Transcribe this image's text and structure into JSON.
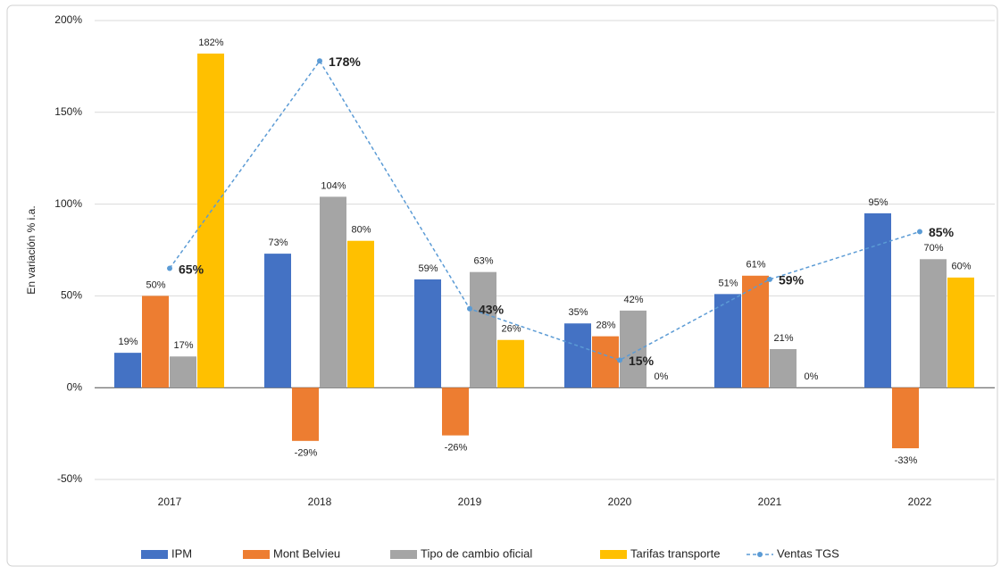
{
  "chart_data": {
    "type": "bar",
    "y_label": "En variación % i.a.",
    "categories": [
      "2017",
      "2018",
      "2019",
      "2020",
      "2021",
      "2022"
    ],
    "series": [
      {
        "name": "IPM",
        "color": "#4472c4",
        "values": [
          19,
          73,
          59,
          35,
          51,
          95
        ],
        "value_labels": [
          "19%",
          "73%",
          "59%",
          "35%",
          "51%",
          "95%"
        ]
      },
      {
        "name": "Mont Belvieu",
        "color": "#ed7d31",
        "values": [
          50,
          -29,
          -26,
          28,
          61,
          -33
        ],
        "value_labels": [
          "50%",
          "-29%",
          "-26%",
          "28%",
          "61%",
          "-33%"
        ]
      },
      {
        "name": "Tipo de cambio oficial",
        "color": "#a5a5a5",
        "values": [
          17,
          104,
          63,
          42,
          21,
          70
        ],
        "value_labels": [
          "17%",
          "104%",
          "63%",
          "42%",
          "21%",
          "70%"
        ]
      },
      {
        "name": "Tarifas transporte",
        "color": "#ffc000",
        "values": [
          182,
          80,
          26,
          0,
          0,
          60
        ],
        "value_labels": [
          "182%",
          "80%",
          "26%",
          "0%",
          "0%",
          "60%"
        ]
      },
      {
        "name": "Ventas TGS",
        "color": "#5b9bd5",
        "type": "line",
        "values": [
          65,
          178,
          43,
          15,
          59,
          85
        ],
        "value_labels": [
          "65%",
          "178%",
          "43%",
          "15%",
          "59%",
          "85%"
        ]
      }
    ],
    "ylim": [
      -50,
      200
    ],
    "yticks": [
      {
        "value": -50,
        "label": "-50%"
      },
      {
        "value": 0,
        "label": "0%"
      },
      {
        "value": 50,
        "label": "50%"
      },
      {
        "value": 100,
        "label": "100%"
      },
      {
        "value": 150,
        "label": "150%"
      },
      {
        "value": 200,
        "label": "200%"
      }
    ],
    "grid": true,
    "legend": "bottom"
  }
}
